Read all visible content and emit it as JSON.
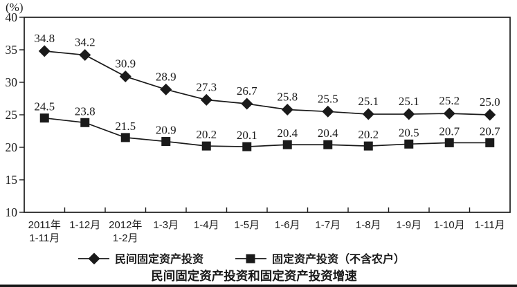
{
  "chart_data": {
    "type": "line",
    "title": "民间固定资产投资和固定资产投资增速",
    "y_unit_label": "(%)",
    "ylim": [
      10,
      40
    ],
    "yticks": [
      10,
      15,
      20,
      25,
      30,
      35,
      40
    ],
    "grid": false,
    "legend_position": "bottom",
    "line_color": "#1a1a1a",
    "background_color": "#ffffff",
    "categories": [
      "2011年\n1-11月",
      "1-12月",
      "2012年\n1-2月",
      "1-3月",
      "1-4月",
      "1-5月",
      "1-6月",
      "1-7月",
      "1-8月",
      "1-9月",
      "1-10月",
      "1-11月"
    ],
    "series": [
      {
        "name": "民间固定资产投资",
        "marker": "diamond",
        "values": [
          34.8,
          34.2,
          30.9,
          28.9,
          27.3,
          26.7,
          25.8,
          25.5,
          25.1,
          25.1,
          25.2,
          25.0
        ]
      },
      {
        "name": "固定资产投资（不含农户）",
        "marker": "square",
        "values": [
          24.5,
          23.8,
          21.5,
          20.9,
          20.2,
          20.1,
          20.4,
          20.4,
          20.2,
          20.5,
          20.7,
          20.7
        ]
      }
    ],
    "data_labels_shown": true,
    "bottom_rule": true
  }
}
